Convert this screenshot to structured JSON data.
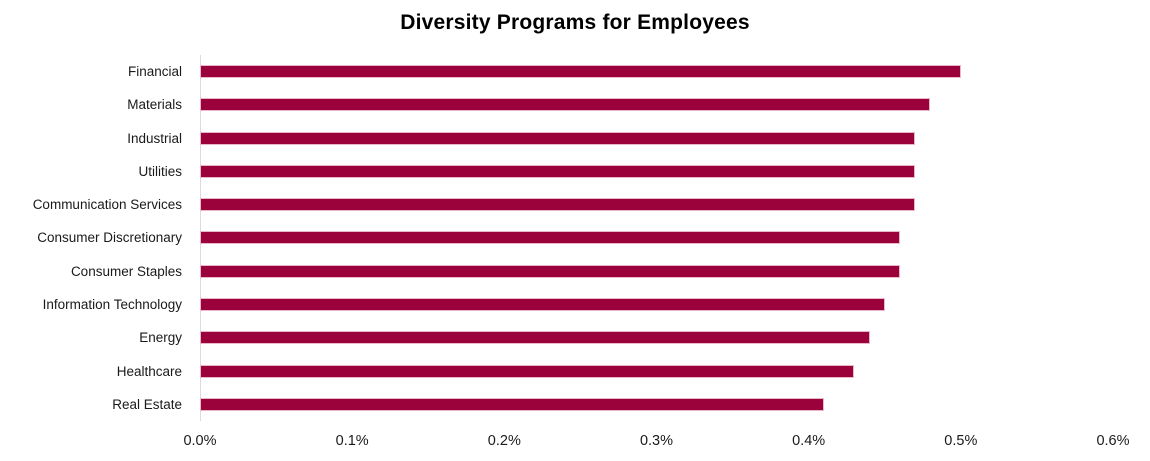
{
  "chart_data": {
    "type": "bar",
    "orientation": "horizontal",
    "title": "Diversity Programs for Employees",
    "categories": [
      "Financial",
      "Materials",
      "Industrial",
      "Utilities",
      "Communication Services",
      "Consumer Discretionary",
      "Consumer Staples",
      "Information Technology",
      "Energy",
      "Healthcare",
      "Real Estate"
    ],
    "values": [
      0.5,
      0.48,
      0.47,
      0.47,
      0.47,
      0.46,
      0.46,
      0.45,
      0.44,
      0.43,
      0.41
    ],
    "unit": "%",
    "xlabel": "",
    "ylabel": "",
    "xlim": [
      0.0,
      0.6
    ],
    "x_tick_labels": [
      "0.0%",
      "0.1%",
      "0.2%",
      "0.3%",
      "0.4%",
      "0.5%",
      "0.6%"
    ],
    "grid": "off",
    "legend": "none",
    "colors": {
      "bar_fill": "#9B023C",
      "bar_border": "#E8B7C8",
      "axis_line": "#DCDCDC",
      "text": "#1A1A1A",
      "title_text": "#000000"
    }
  }
}
